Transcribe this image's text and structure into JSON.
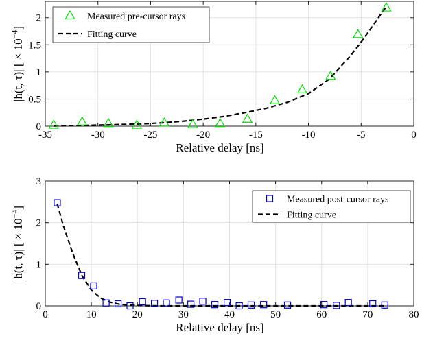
{
  "chart_data": [
    {
      "type": "scatter",
      "xlabel": "Relative delay [ns]",
      "ylabel": "|h(t, τ)| [ × 10",
      "ylabel_exponent": "−4",
      "ylabel_suffix": "]",
      "xlim": [
        -35,
        0
      ],
      "ylim": [
        0,
        2.3
      ],
      "xticks": [
        -35,
        -30,
        -25,
        -20,
        -15,
        -10,
        -5,
        0
      ],
      "xtick_labels": [
        "-35",
        "-30",
        "-25",
        "-20",
        "-15",
        "-10",
        "-5",
        "0"
      ],
      "yticks": [
        0,
        0.5,
        1,
        1.5,
        2
      ],
      "ytick_labels": [
        "0",
        "0.5",
        "1",
        "1.5",
        "2"
      ],
      "grid": true,
      "legend_position": "top-left",
      "series": [
        {
          "name": "Measured pre-cursor rays",
          "kind": "marker",
          "marker": "triangle",
          "color": "#00dd00",
          "x": [
            -34.2,
            -31.5,
            -29,
            -26.3,
            -23.7,
            -21,
            -18.4,
            -15.8,
            -13.2,
            -10.6,
            -7.9,
            -5.3,
            -2.6
          ],
          "y": [
            0.02,
            0.08,
            0.05,
            0.02,
            0.06,
            0.03,
            0.05,
            0.13,
            0.47,
            0.67,
            0.92,
            1.69,
            2.18
          ]
        },
        {
          "name": "Fitting curve",
          "kind": "line",
          "dash": "dashed",
          "color": "#000000",
          "x": [
            -34.2,
            -32,
            -30,
            -28,
            -26,
            -24,
            -22,
            -20,
            -18,
            -16,
            -14,
            -12,
            -10,
            -8,
            -6,
            -5,
            -4,
            -3,
            -2.6
          ],
          "y": [
            0.005,
            0.01,
            0.02,
            0.03,
            0.04,
            0.06,
            0.09,
            0.13,
            0.18,
            0.25,
            0.33,
            0.44,
            0.6,
            0.87,
            1.3,
            1.55,
            1.82,
            2.1,
            2.2
          ]
        }
      ]
    },
    {
      "type": "scatter",
      "xlabel": "Relative delay [ns]",
      "ylabel": "|h(t, τ)| [ × 10",
      "ylabel_exponent": "−4",
      "ylabel_suffix": "]",
      "xlim": [
        0,
        80
      ],
      "ylim": [
        0,
        3
      ],
      "xticks": [
        0,
        10,
        20,
        30,
        40,
        50,
        60,
        70,
        80
      ],
      "xtick_labels": [
        "0",
        "10",
        "20",
        "30",
        "40",
        "50",
        "60",
        "70",
        "80"
      ],
      "yticks": [
        0,
        1,
        2,
        3
      ],
      "ytick_labels": [
        "0",
        "1",
        "2",
        "3"
      ],
      "grid": true,
      "legend_position": "top-right",
      "series": [
        {
          "name": "Measured post-cursor rays",
          "kind": "marker",
          "marker": "square",
          "color": "#0000cc",
          "x": [
            2.6,
            7.9,
            10.5,
            13.2,
            15.8,
            18.4,
            21.1,
            23.7,
            26.3,
            29,
            31.6,
            34.2,
            36.8,
            39.5,
            42.1,
            44.7,
            47.4,
            52.6,
            60.5,
            63.2,
            65.8,
            71.1,
            73.7
          ],
          "y": [
            2.48,
            0.73,
            0.48,
            0.07,
            0.05,
            0.0,
            0.1,
            0.06,
            0.07,
            0.14,
            0.04,
            0.11,
            0.03,
            0.08,
            0.0,
            0.02,
            0.03,
            0.02,
            0.03,
            0.01,
            0.08,
            0.05,
            0.02
          ]
        },
        {
          "name": "Fitting curve",
          "kind": "line",
          "dash": "dashed",
          "color": "#000000",
          "x": [
            2.6,
            4,
            6,
            8,
            10,
            12,
            14,
            16,
            18,
            20,
            25,
            30,
            40,
            50,
            60,
            73.7
          ],
          "y": [
            2.45,
            1.9,
            1.25,
            0.72,
            0.38,
            0.19,
            0.09,
            0.04,
            0.02,
            0.01,
            0.0,
            0.0,
            0.0,
            0.0,
            0.0,
            0.0
          ]
        }
      ]
    }
  ]
}
